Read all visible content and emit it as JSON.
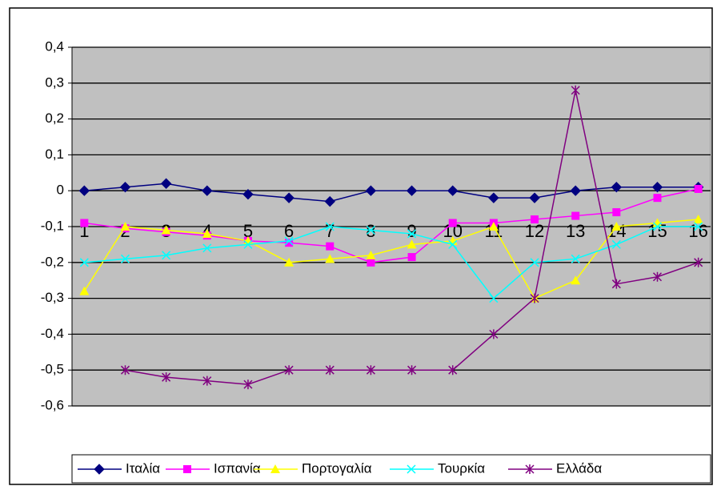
{
  "chart_data": {
    "type": "line",
    "categories": [
      "1",
      "2",
      "3",
      "4",
      "5",
      "6",
      "7",
      "8",
      "9",
      "10",
      "11",
      "12",
      "13",
      "14",
      "15",
      "16"
    ],
    "series": [
      {
        "name": "Ιταλία",
        "color": "#000080",
        "marker": "diamond",
        "values": [
          0,
          0.01,
          0.02,
          0,
          -0.01,
          -0.02,
          -0.03,
          0,
          0,
          0,
          -0.02,
          -0.02,
          0,
          0.01,
          0.01,
          0.01
        ]
      },
      {
        "name": "Ισπανία",
        "color": "#ff00ff",
        "marker": "square",
        "values": [
          -0.09,
          -0.105,
          -0.115,
          -0.125,
          -0.14,
          -0.145,
          -0.155,
          -0.2,
          -0.185,
          -0.09,
          -0.09,
          -0.08,
          -0.07,
          -0.06,
          -0.02,
          0.005
        ]
      },
      {
        "name": "Πορτογαλία",
        "color": "#ffff00",
        "marker": "triangle",
        "values": [
          -0.28,
          -0.1,
          -0.11,
          -0.12,
          -0.14,
          -0.2,
          -0.19,
          -0.18,
          -0.15,
          -0.14,
          -0.1,
          -0.3,
          -0.25,
          -0.1,
          -0.09,
          -0.08
        ]
      },
      {
        "name": "Τουρκία",
        "color": "#00ffff",
        "marker": "x",
        "values": [
          -0.2,
          -0.19,
          -0.18,
          -0.16,
          -0.15,
          -0.14,
          -0.1,
          -0.11,
          -0.12,
          -0.15,
          -0.3,
          -0.2,
          -0.19,
          -0.15,
          -0.1,
          -0.1
        ]
      },
      {
        "name": "Ελλάδα",
        "color": "#800080",
        "marker": "star",
        "values": [
          null,
          -0.5,
          -0.52,
          -0.53,
          -0.54,
          -0.5,
          -0.5,
          -0.5,
          -0.5,
          -0.5,
          -0.4,
          -0.3,
          0.28,
          -0.26,
          -0.24,
          -0.2
        ]
      }
    ],
    "ylim": [
      -0.6,
      0.4
    ],
    "yticks": [
      {
        "value": -0.6,
        "label": "-0,6"
      },
      {
        "value": -0.5,
        "label": "-0,5"
      },
      {
        "value": -0.4,
        "label": "-0,4"
      },
      {
        "value": -0.3,
        "label": "-0,3"
      },
      {
        "value": -0.2,
        "label": "-0,2"
      },
      {
        "value": -0.1,
        "label": "-0,1"
      },
      0,
      {
        "value": 0.1,
        "label": "0,1"
      },
      {
        "value": 0.2,
        "label": "0,2"
      },
      {
        "value": 0.3,
        "label": "0,3"
      },
      {
        "value": 0.4,
        "label": "0,4"
      }
    ],
    "grid": true,
    "legend": "bottom"
  }
}
